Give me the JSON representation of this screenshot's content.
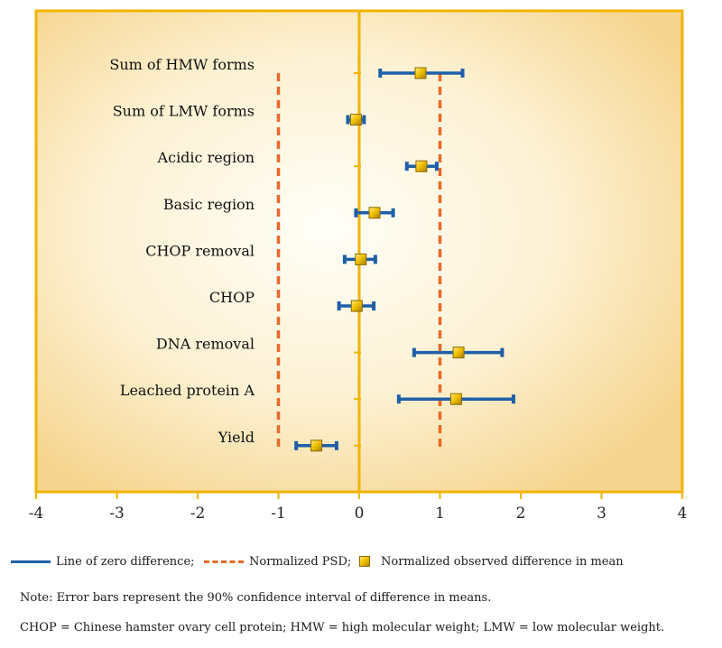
{
  "chart_data": {
    "type": "forest",
    "categories": [
      "Sum of HMW forms",
      "Sum of LMW forms",
      "Acidic region",
      "Basic region",
      "CHOP removal",
      "CHOP",
      "DNA removal",
      "Leached protein A",
      "Yield"
    ],
    "series": [
      {
        "name": "Normalized observed difference in mean",
        "values": [
          0.76,
          -0.04,
          0.77,
          0.19,
          0.02,
          -0.03,
          1.23,
          1.2,
          -0.53
        ]
      },
      {
        "name": "CI low (90%)",
        "values": [
          0.26,
          -0.14,
          0.59,
          -0.04,
          -0.18,
          -0.25,
          0.68,
          0.49,
          -0.78
        ]
      },
      {
        "name": "CI high (90%)",
        "values": [
          1.28,
          0.06,
          0.96,
          0.42,
          0.2,
          0.18,
          1.77,
          1.91,
          -0.28
        ]
      }
    ],
    "psd_lines": [
      -1,
      1
    ],
    "zero_line": 0,
    "xlim": [
      -4,
      4
    ],
    "xticks": [
      "-4",
      "-3",
      "-2",
      "-1",
      "0",
      "1",
      "2",
      "3",
      "4"
    ],
    "title": "",
    "xlabel": "",
    "ylabel": "",
    "colors": {
      "error_bar": "#1f5fa8",
      "psd": "#e8692a",
      "zero_line": "#f0b400",
      "frame": "#f0b400",
      "marker": "#f2c200",
      "bg_center": "#fffdf6",
      "bg_edge": "#f7d897"
    }
  },
  "legend": {
    "zero_label": "Line of zero difference;",
    "psd_label": "Normalized PSD;",
    "marker_label": "Normalized observed difference in mean"
  },
  "notes": {
    "note1": "Note: Error bars represent the 90% confidence interval of difference in means.",
    "note2": "CHOP = Chinese hamster ovary cell protein; HMW = high molecular weight; LMW = low molecular weight."
  }
}
